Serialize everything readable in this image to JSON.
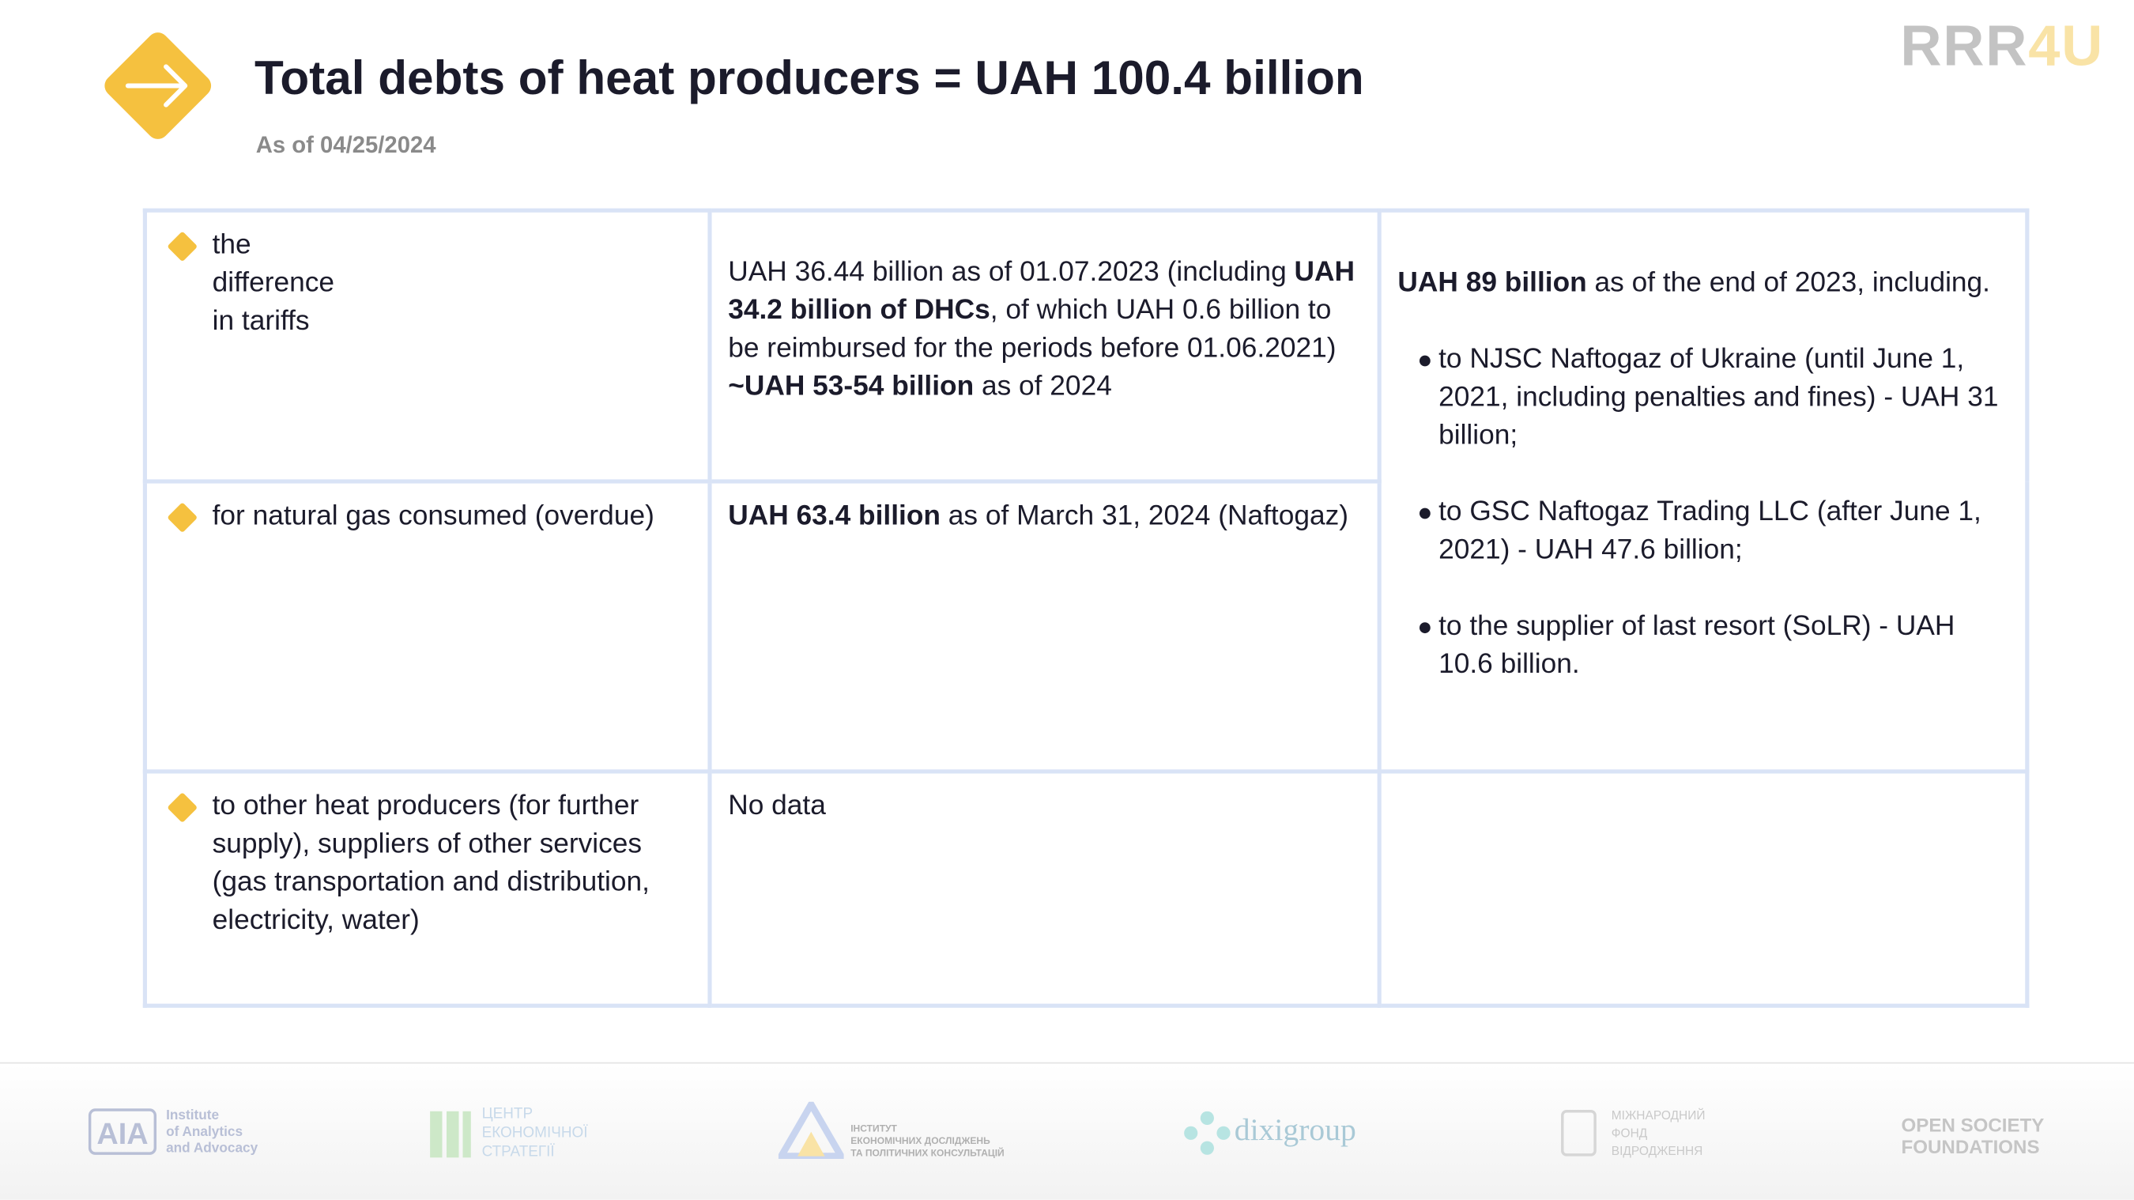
{
  "header": {
    "title": "Total debts of heat producers = UAH 100.4 billion",
    "subtitle": "As of 04/25/2024",
    "brand": {
      "part1": "RRR",
      "part2": "4U"
    }
  },
  "table": {
    "rows": [
      {
        "label": "the\ndifference\nin tariffs",
        "cells": [
          {
            "paragraphs": [
              [
                {
                  "text": "UAH 36.44 billion as of 01.07.2023 (including "
                },
                {
                  "text": "UAH 34.2 billion of DHCs",
                  "bold": true
                },
                {
                  "text": ", of which UAH 0.6 billion to be reimbursed for the periods before 01.06.2021)"
                }
              ],
              [
                {
                  "text": "~UAH 53-54 billion",
                  "bold": true
                },
                {
                  "text": " as of 2024"
                }
              ]
            ]
          },
          {
            "paragraphs": [
              [
                {
                  "text": "UAH 89 billion",
                  "bold": true
                },
                {
                  "text": " as of the end of 2023, including."
                }
              ]
            ],
            "bullets": [
              [
                {
                  "text": "to NJSC Naftogaz of Ukraine (until June 1, 2021, including penalties and fines) - UAH 31 billion;"
                }
              ],
              [
                {
                  "text": "to GSC Naftogaz Trading LLC (after June 1, 2021) - UAH 47.6 billion;"
                }
              ],
              [
                {
                  "text": "to the supplier of last resort (SoLR) - UAH 10.6 billion."
                }
              ]
            ]
          }
        ]
      },
      {
        "label": "for natural gas consumed (overdue)",
        "cells": [
          {
            "paragraphs": [
              [
                {
                  "text": "UAH 63.4 billion",
                  "bold": true
                },
                {
                  "text": " as of March 31, 2024 (Naftogaz)"
                }
              ]
            ]
          }
        ]
      },
      {
        "label": "to other heat producers (for further supply), suppliers of other services (gas transportation and distribution, electricity, water)",
        "cells": [
          {
            "paragraphs": [
              [
                {
                  "text": "No data"
                }
              ]
            ]
          }
        ]
      }
    ]
  },
  "footer": {
    "logos": [
      {
        "mark": "AIA",
        "text": "Institute\nof Analytics\nand Advocacy"
      },
      {
        "text": "ЦЕНТР\nЕКОНОМІЧНОЇ\nСТРАТЕГІЇ"
      },
      {
        "text": "ІНСТИТУТ\nЕКОНОМІЧНИХ ДОСЛІДЖЕНЬ\nТА ПОЛІТИЧНИХ КОНСУЛЬТАЦІЙ"
      },
      {
        "text": "dixigroup"
      },
      {
        "text": "МІЖНАРОДНИЙ\nФОНД\nВІДРОДЖЕННЯ"
      },
      {
        "text": "OPEN SOCIETY\nFOUNDATIONS"
      }
    ]
  }
}
